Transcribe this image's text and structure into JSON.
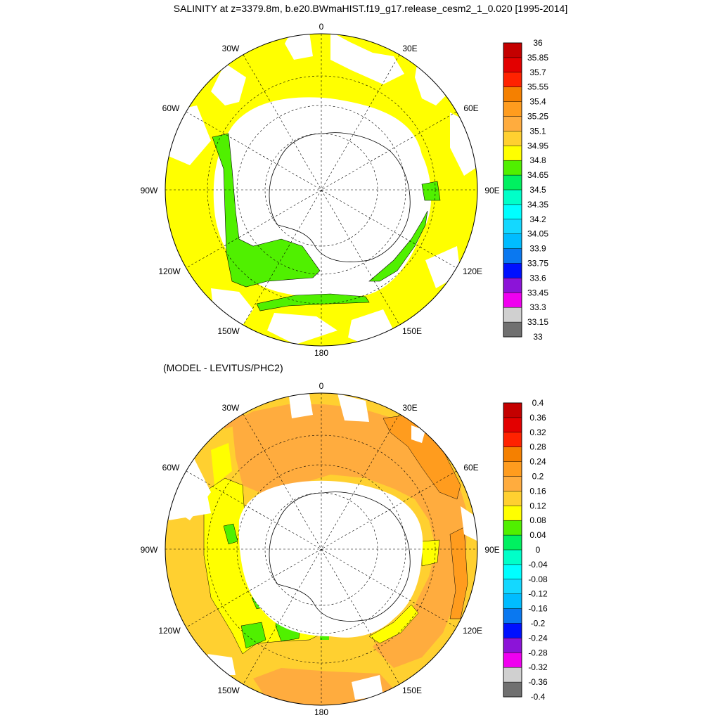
{
  "top_panel": {
    "title": "SALINITY at z=3379.8m, b.e20.BWmaHIST.f19_g17.release_cesm2_1_0.020 [1995-2014]",
    "lon_labels": [
      "0",
      "30E",
      "60E",
      "90E",
      "120E",
      "150E",
      "180",
      "150W",
      "120W",
      "90W",
      "60W",
      "30W"
    ],
    "colorbar_labels": [
      "36",
      "35.85",
      "35.7",
      "35.55",
      "35.4",
      "35.25",
      "35.1",
      "34.95",
      "34.8",
      "34.65",
      "34.5",
      "34.35",
      "34.2",
      "34.05",
      "33.9",
      "33.75",
      "33.6",
      "33.45",
      "33.3",
      "33.15",
      "33"
    ],
    "colorbar_colors": [
      "#c40000",
      "#e30000",
      "#ff2200",
      "#f58000",
      "#ff9c1e",
      "#ffac3e",
      "#ffd030",
      "#ffff00",
      "#50f000",
      "#00f060",
      "#00ffc8",
      "#00ffff",
      "#14d8ff",
      "#00bcff",
      "#0a78f0",
      "#0010ff",
      "#8c14d8",
      "#f000f0",
      "#d0d0d0",
      "#707070"
    ]
  },
  "bottom_panel": {
    "title": "(MODEL - LEVITUS/PHC2)",
    "lon_labels": [
      "0",
      "30E",
      "60E",
      "90E",
      "120E",
      "150E",
      "180",
      "150W",
      "120W",
      "90W",
      "60W",
      "30W"
    ],
    "colorbar_labels": [
      "0.4",
      "0.36",
      "0.32",
      "0.28",
      "0.24",
      "0.2",
      "0.16",
      "0.12",
      "0.08",
      "0.04",
      "0",
      "-0.04",
      "-0.08",
      "-0.12",
      "-0.16",
      "-0.2",
      "-0.24",
      "-0.28",
      "-0.32",
      "-0.36",
      "-0.4"
    ],
    "colorbar_colors": [
      "#c40000",
      "#e30000",
      "#ff2200",
      "#f58000",
      "#ff9c1e",
      "#ffac3e",
      "#ffd030",
      "#ffff00",
      "#50f000",
      "#00f060",
      "#00ffc8",
      "#00ffff",
      "#14d8ff",
      "#00bcff",
      "#0a78f0",
      "#0010ff",
      "#8c14d8",
      "#f000f0",
      "#d0d0d0",
      "#707070"
    ]
  }
}
